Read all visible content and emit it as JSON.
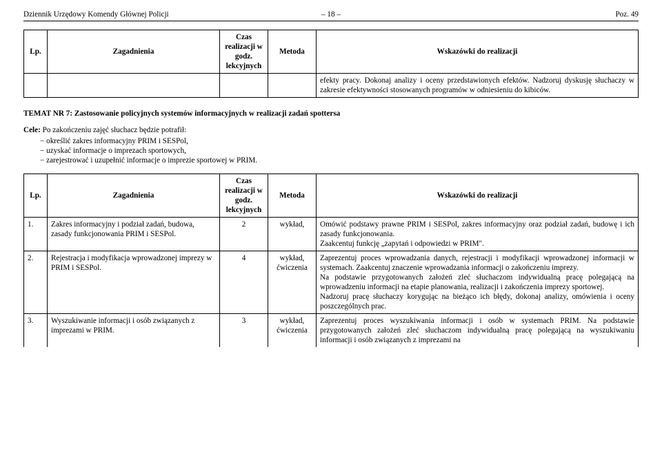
{
  "header": {
    "left": "Dziennik Urzędowy Komendy Głównej Policji",
    "center": "– 18 –",
    "right": "Poz. 49"
  },
  "table1": {
    "headers": {
      "lp": "Lp.",
      "zag": "Zagadnienia",
      "czas": "Czas realizacji w godz. lekcyjnych",
      "met": "Metoda",
      "wsk": "Wskazówki do realizacji"
    },
    "row": {
      "wsk": "efekty pracy. Dokonaj analizy i oceny przedstawionych efektów. Nadzoruj dyskusję słuchaczy w zakresie efektywności stosowanych programów w odniesieniu do kibiców."
    }
  },
  "section": {
    "title": "TEMAT NR 7: Zastosowanie policyjnych systemów informacyjnych w realizacji zadań spottersa",
    "cele_lead": "Cele:",
    "cele_intro": " Po zakończeniu zajęć słuchacz będzie potrafił:",
    "cele_items": [
      "określić zakres informacyjny PRIM i SESPol,",
      "uzyskać informacje o imprezach sportowych,",
      "zarejestrować i uzupełnić informacje o imprezie sportowej w PRIM."
    ]
  },
  "table2": {
    "headers": {
      "lp": "Lp.",
      "zag": "Zagadnienia",
      "czas": "Czas realizacji w godz. lekcyjnych",
      "met": "Metoda",
      "wsk": "Wskazówki do realizacji"
    },
    "rows": [
      {
        "lp": "1.",
        "zag": "Zakres informacyjny i podział zadań, budowa, zasady funkcjonowania PRIM i SESPol.",
        "czas": "2",
        "met": "wykład,",
        "wsk": "Omówić podstawy prawne PRIM i SESPol, zakres informacyjny oraz podział zadań, budowę i ich zasady funkcjonowania.\nZaakcentuj funkcję „zapytań i odpowiedzi w PRIM\"."
      },
      {
        "lp": "2.",
        "zag": "Rejestracja i modyfikacja wprowadzonej imprezy w PRIM i SESPol.",
        "czas": "4",
        "met": "wykład, ćwiczenia",
        "wsk": "Zaprezentuj proces wprowadzania danych, rejestracji i modyfikacji wprowadzonej informacji w systemach. Zaakcentuj znaczenie wprowadzania informacji o zakończeniu imprezy.\nNa podstawie przygotowanych założeń zleć słuchaczom indywidualną pracę polegającą na wprowadzeniu informacji na etapie planowania, realizacji i zakończenia imprezy sportowej.\nNadzoruj pracę słuchaczy korygując na bieżąco ich błędy, dokonaj analizy, omówienia i oceny poszczególnych prac."
      },
      {
        "lp": "3.",
        "zag": "Wyszukiwanie informacji i osób związanych z imprezami w PRIM.",
        "czas": "3",
        "met": "wykład, ćwiczenia",
        "wsk": "Zaprezentuj proces wyszukiwania informacji i osób w systemach PRIM. Na podstawie przygotowanych założeń zleć słuchaczom indywidualną pracę polegającą na wyszukiwaniu informacji i osób związanych z imprezami na"
      }
    ]
  }
}
